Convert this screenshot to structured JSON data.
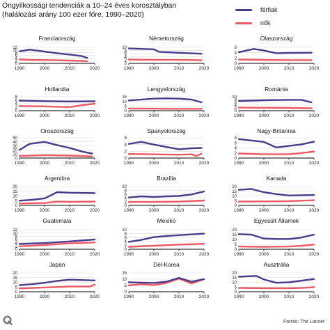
{
  "header": {
    "title_line1": "Öngyilkossági tendenciák a 10–24 éves korosztályban",
    "title_line2": "(halálozási arány 100 ezer főre, 1990–2020)"
  },
  "legend": [
    {
      "label": "férfiak",
      "color": "#4b3a8c"
    },
    {
      "label": "nők",
      "color": "#ee5a64"
    }
  ],
  "footer": {
    "source": "Forrás: The Lancet",
    "logo_icon": "q-logo-icon"
  },
  "colors": {
    "male": "#4b3a8c",
    "female": "#ee5a64",
    "grid": "#d9d9d9",
    "axis": "#000000"
  },
  "chart_data": [
    {
      "type": "line",
      "title": "Franciaország",
      "xlim": [
        1990,
        2020
      ],
      "ylim": [
        0,
        12
      ],
      "yticks": [
        0,
        2,
        4,
        6,
        8,
        10,
        12
      ],
      "xticks": [
        1990,
        2000,
        2010,
        2020
      ],
      "series": [
        {
          "name": "férfiak",
          "x": [
            1990,
            1994,
            2000,
            2005,
            2010,
            2015,
            2017
          ],
          "y": [
            9,
            10.3,
            8.8,
            7.6,
            6.6,
            5.4,
            4
          ]
        },
        {
          "name": "nők",
          "x": [
            1990,
            1995,
            2000,
            2005,
            2010,
            2015,
            2017
          ],
          "y": [
            3,
            2.5,
            2.5,
            2.3,
            2.1,
            1.8,
            1.6
          ]
        }
      ]
    },
    {
      "type": "line",
      "title": "Németország",
      "xlim": [
        1990,
        2020
      ],
      "ylim": [
        0,
        10
      ],
      "yticks": [
        0,
        2,
        4,
        6,
        8,
        10
      ],
      "xticks": [
        1990,
        2000,
        2010,
        2020
      ],
      "series": [
        {
          "name": "férfiak",
          "x": [
            1990,
            2000,
            2002,
            2010,
            2019
          ],
          "y": [
            9.3,
            8.8,
            7.2,
            6.6,
            6
          ]
        },
        {
          "name": "nők",
          "x": [
            1990,
            2000,
            2010,
            2019
          ],
          "y": [
            2.4,
            2.2,
            2.2,
            2
          ]
        }
      ]
    },
    {
      "type": "line",
      "title": "Olaszország",
      "xlim": [
        1990,
        2020
      ],
      "ylim": [
        0,
        6
      ],
      "yticks": [
        0,
        2,
        4,
        6
      ],
      "xticks": [
        1990,
        2000,
        2010,
        2020
      ],
      "series": [
        {
          "name": "férfiak",
          "x": [
            1990,
            1996,
            2000,
            2005,
            2010,
            2019
          ],
          "y": [
            4.2,
            5.4,
            4.8,
            3.8,
            3.9,
            4
          ]
        },
        {
          "name": "nők",
          "x": [
            1990,
            2000,
            2010,
            2019
          ],
          "y": [
            1.4,
            1.3,
            1.2,
            1.2
          ]
        }
      ]
    },
    {
      "type": "line",
      "title": "Hollandia",
      "xlim": [
        1990,
        2020
      ],
      "ylim": [
        0,
        8
      ],
      "yticks": [
        0,
        2,
        4,
        6,
        8
      ],
      "xticks": [
        1990,
        2000,
        2010,
        2020
      ],
      "series": [
        {
          "name": "férfiak",
          "x": [
            1990,
            2000,
            2010,
            2020
          ],
          "y": [
            5.8,
            5.5,
            5.3,
            5.4
          ]
        },
        {
          "name": "nők",
          "x": [
            1990,
            2000,
            2010,
            2015,
            2020
          ],
          "y": [
            2.7,
            2.5,
            2.1,
            3.2,
            4
          ]
        }
      ]
    },
    {
      "type": "line",
      "title": "Lengyelország",
      "xlim": [
        1990,
        2020
      ],
      "ylim": [
        0,
        15
      ],
      "yticks": [
        0,
        5,
        10,
        15
      ],
      "xticks": [
        1990,
        2000,
        2010,
        2020
      ],
      "series": [
        {
          "name": "férfiak",
          "x": [
            1990,
            2000,
            2005,
            2010,
            2015,
            2019
          ],
          "y": [
            11,
            13,
            13.3,
            13,
            12,
            9
          ]
        },
        {
          "name": "nők",
          "x": [
            1990,
            2000,
            2010,
            2019
          ],
          "y": [
            2.3,
            2.2,
            2,
            2
          ]
        }
      ]
    },
    {
      "type": "line",
      "title": "Románia",
      "xlim": [
        1990,
        2020
      ],
      "ylim": [
        0,
        10
      ],
      "yticks": [
        0,
        2,
        4,
        6,
        8,
        10
      ],
      "xticks": [
        1990,
        2000,
        2010,
        2020
      ],
      "series": [
        {
          "name": "férfiak",
          "x": [
            1990,
            2000,
            2010,
            2015,
            2019
          ],
          "y": [
            7,
            7.5,
            7.8,
            7.8,
            6
          ]
        },
        {
          "name": "nők",
          "x": [
            1990,
            2000,
            2010,
            2019
          ],
          "y": [
            2.2,
            2.1,
            2,
            1.7
          ]
        }
      ]
    },
    {
      "type": "line",
      "title": "Oroszország",
      "xlim": [
        1990,
        2020
      ],
      "ylim": [
        0,
        50
      ],
      "yticks": [
        0,
        10,
        20,
        30,
        40,
        50
      ],
      "xticks": [
        1990,
        2000,
        2010,
        2020
      ],
      "series": [
        {
          "name": "férfiak",
          "x": [
            1990,
            1994,
            2000,
            2005,
            2010,
            2015,
            2019
          ],
          "y": [
            20,
            35,
            40,
            32,
            25,
            16,
            11
          ]
        },
        {
          "name": "nők",
          "x": [
            1990,
            2000,
            2010,
            2019
          ],
          "y": [
            5,
            7,
            6,
            4
          ]
        }
      ]
    },
    {
      "type": "line",
      "title": "Spanyolország",
      "xlim": [
        1990,
        2020
      ],
      "ylim": [
        0,
        6
      ],
      "yticks": [
        0,
        2,
        4,
        6
      ],
      "xticks": [
        1990,
        2000,
        2010,
        2020
      ],
      "series": [
        {
          "name": "férfiak",
          "x": [
            1990,
            1995,
            2000,
            2005,
            2010,
            2015,
            2019
          ],
          "y": [
            4.2,
            4.8,
            4,
            3.3,
            2.6,
            2.9,
            3
          ]
        },
        {
          "name": "nők",
          "x": [
            1990,
            2000,
            2010,
            2015,
            2017,
            2019
          ],
          "y": [
            1.2,
            1.1,
            1,
            1.1,
            0.6,
            1.3
          ]
        }
      ]
    },
    {
      "type": "line",
      "title": "Nagy-Britannia",
      "xlim": [
        1990,
        2020
      ],
      "ylim": [
        0,
        8
      ],
      "yticks": [
        0,
        2,
        4,
        6,
        8
      ],
      "xticks": [
        1990,
        2000,
        2010,
        2020
      ],
      "series": [
        {
          "name": "férfiak",
          "x": [
            1990,
            2000,
            2005,
            2010,
            2015,
            2020
          ],
          "y": [
            7.5,
            6.4,
            4.2,
            4.8,
            5.4,
            6.5
          ]
        },
        {
          "name": "nők",
          "x": [
            1990,
            2000,
            2010,
            2015,
            2020
          ],
          "y": [
            1.8,
            1.5,
            1.5,
            2,
            2.6
          ]
        }
      ]
    },
    {
      "type": "line",
      "title": "Argentína",
      "xlim": [
        1990,
        2020
      ],
      "ylim": [
        0,
        20
      ],
      "yticks": [
        0,
        5,
        10,
        15,
        20
      ],
      "xticks": [
        1990,
        2000,
        2010,
        2020
      ],
      "series": [
        {
          "name": "férfiak",
          "x": [
            1990,
            1995,
            2000,
            2002,
            2005,
            2010,
            2020
          ],
          "y": [
            5,
            6,
            7.5,
            10,
            14,
            13.5,
            13
          ]
        },
        {
          "name": "nők",
          "x": [
            1990,
            2000,
            2005,
            2010,
            2020
          ],
          "y": [
            2,
            2.5,
            4,
            3.8,
            4
          ]
        }
      ]
    },
    {
      "type": "line",
      "title": "Brazília",
      "xlim": [
        1990,
        2020
      ],
      "ylim": [
        0,
        10
      ],
      "yticks": [
        0,
        2,
        4,
        6,
        8,
        10
      ],
      "xticks": [
        1990,
        2000,
        2010,
        2020
      ],
      "series": [
        {
          "name": "férfiak",
          "x": [
            1990,
            1995,
            2000,
            2005,
            2010,
            2015,
            2020
          ],
          "y": [
            4.2,
            4.8,
            4.5,
            4.8,
            5,
            5.8,
            7.4
          ]
        },
        {
          "name": "nők",
          "x": [
            1990,
            2000,
            2010,
            2020
          ],
          "y": [
            1.8,
            1.9,
            2,
            2.6
          ]
        }
      ]
    },
    {
      "type": "line",
      "title": "Kanada",
      "xlim": [
        1990,
        2020
      ],
      "ylim": [
        0,
        20
      ],
      "yticks": [
        0,
        5,
        10,
        15,
        20
      ],
      "xticks": [
        1990,
        2000,
        2010,
        2020
      ],
      "series": [
        {
          "name": "férfiak",
          "x": [
            1990,
            1995,
            2000,
            2005,
            2010,
            2020
          ],
          "y": [
            16.5,
            17.5,
            14,
            12,
            10.5,
            11
          ]
        },
        {
          "name": "nők",
          "x": [
            1990,
            2000,
            2010,
            2020
          ],
          "y": [
            4,
            4.2,
            4.5,
            5.5
          ]
        }
      ]
    },
    {
      "type": "line",
      "title": "Guatemala",
      "xlim": [
        1990,
        2020
      ],
      "ylim": [
        0,
        12
      ],
      "yticks": [
        0,
        2,
        4,
        6,
        8,
        10,
        12
      ],
      "xticks": [
        1990,
        2000,
        2010,
        2020
      ],
      "series": [
        {
          "name": "férfiak",
          "x": [
            1990,
            2000,
            2010,
            2020
          ],
          "y": [
            3.2,
            3.8,
            4.8,
            6
          ]
        },
        {
          "name": "nők",
          "x": [
            1990,
            2000,
            2010,
            2020
          ],
          "y": [
            1.8,
            2.6,
            3.6,
            4.2
          ]
        }
      ]
    },
    {
      "type": "line",
      "title": "Mexikó",
      "xlim": [
        1990,
        2020
      ],
      "ylim": [
        0,
        10
      ],
      "yticks": [
        0,
        2,
        4,
        6,
        8,
        10
      ],
      "xticks": [
        1990,
        2000,
        2010,
        2020
      ],
      "series": [
        {
          "name": "férfiak",
          "x": [
            1990,
            1995,
            2000,
            2005,
            2010,
            2020
          ],
          "y": [
            3.8,
            4.8,
            6.2,
            6.8,
            7.2,
            8
          ]
        },
        {
          "name": "nők",
          "x": [
            1990,
            2000,
            2010,
            2020
          ],
          "y": [
            1.2,
            1.8,
            2.4,
            2.8
          ]
        }
      ]
    },
    {
      "type": "line",
      "title": "Egyesült Államok",
      "xlim": [
        1990,
        2020
      ],
      "ylim": [
        0,
        20
      ],
      "yticks": [
        0,
        5,
        10,
        15,
        20
      ],
      "xticks": [
        1990,
        2000,
        2010,
        2020
      ],
      "series": [
        {
          "name": "férfiak",
          "x": [
            1990,
            1995,
            2000,
            2005,
            2010,
            2015,
            2020
          ],
          "y": [
            15.5,
            15,
            11,
            10.5,
            10.5,
            12,
            15
          ]
        },
        {
          "name": "nők",
          "x": [
            1990,
            2000,
            2010,
            2015,
            2020
          ],
          "y": [
            2.8,
            2.5,
            2.8,
            3.5,
            4.8
          ]
        }
      ]
    },
    {
      "type": "line",
      "title": "Japán",
      "xlim": [
        1990,
        2020
      ],
      "ylim": [
        0,
        20
      ],
      "yticks": [
        0,
        5,
        10,
        15,
        20
      ],
      "xticks": [
        1990,
        2000,
        2010,
        2020
      ],
      "series": [
        {
          "name": "férfiak",
          "x": [
            1990,
            1995,
            2000,
            2005,
            2010,
            2020
          ],
          "y": [
            7,
            8,
            9.5,
            11.5,
            12.8,
            12
          ]
        },
        {
          "name": "nők",
          "x": [
            1990,
            2000,
            2010,
            2018,
            2020
          ],
          "y": [
            3.5,
            4.5,
            5.5,
            5.5,
            7.5
          ]
        }
      ]
    },
    {
      "type": "line",
      "title": "Dél-Korea",
      "xlim": [
        1990,
        2020
      ],
      "ylim": [
        0,
        15
      ],
      "yticks": [
        0,
        5,
        10,
        15
      ],
      "xticks": [
        1990,
        2000,
        2010,
        2020
      ],
      "series": [
        {
          "name": "férfiak",
          "x": [
            1990,
            2000,
            2005,
            2010,
            2015,
            2020
          ],
          "y": [
            7.5,
            7,
            8,
            11,
            8,
            10
          ]
        },
        {
          "name": "nők",
          "x": [
            1990,
            1995,
            2000,
            2005,
            2010,
            2015,
            2020
          ],
          "y": [
            5,
            6,
            5.2,
            7,
            10.5,
            6.5,
            10
          ]
        }
      ]
    },
    {
      "type": "line",
      "title": "Ausztrália",
      "xlim": [
        1990,
        2020
      ],
      "ylim": [
        0,
        20
      ],
      "yticks": [
        0,
        5,
        10,
        15,
        20
      ],
      "xticks": [
        1990,
        2000,
        2010,
        2020
      ],
      "series": [
        {
          "name": "férfiak",
          "x": [
            1990,
            1997,
            2000,
            2005,
            2010,
            2020
          ],
          "y": [
            16,
            16.8,
            13,
            9.5,
            10,
            13.5
          ]
        },
        {
          "name": "nők",
          "x": [
            1990,
            2000,
            2010,
            2015,
            2020
          ],
          "y": [
            4,
            3.8,
            3.6,
            4,
            4.8
          ]
        }
      ]
    }
  ]
}
